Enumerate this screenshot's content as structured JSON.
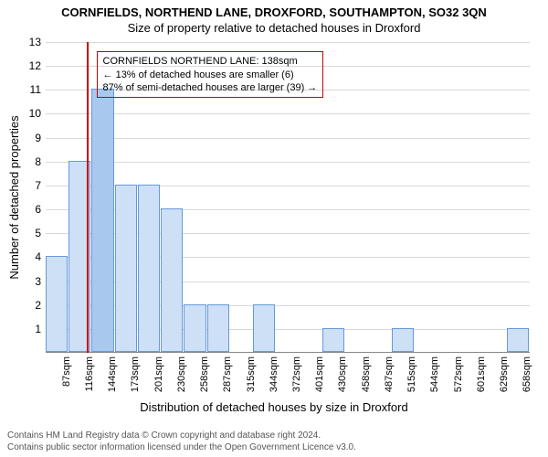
{
  "title_main": "CORNFIELDS, NORTHEND LANE, DROXFORD, SOUTHAMPTON, SO32 3QN",
  "title_sub": "Size of property relative to detached houses in Droxford",
  "ylabel": "Number of detached properties",
  "xlabel": "Distribution of detached houses by size in Droxford",
  "chart": {
    "type": "histogram",
    "ymax": 13,
    "yticks": [
      1,
      2,
      3,
      4,
      5,
      6,
      7,
      8,
      9,
      10,
      11,
      12,
      13
    ],
    "xtick_labels": [
      "87sqm",
      "116sqm",
      "144sqm",
      "173sqm",
      "201sqm",
      "230sqm",
      "258sqm",
      "287sqm",
      "315sqm",
      "344sqm",
      "372sqm",
      "401sqm",
      "430sqm",
      "458sqm",
      "487sqm",
      "515sqm",
      "544sqm",
      "572sqm",
      "601sqm",
      "629sqm",
      "658sqm"
    ],
    "xtick_positions": [
      0,
      1,
      2,
      3,
      4,
      5,
      6,
      7,
      8,
      9,
      10,
      11,
      12,
      13,
      14,
      15,
      16,
      17,
      18,
      19,
      20
    ],
    "bars": [
      {
        "slot": 0,
        "value": 4
      },
      {
        "slot": 1,
        "value": 8
      },
      {
        "slot": 2,
        "value": 11
      },
      {
        "slot": 3,
        "value": 7
      },
      {
        "slot": 4,
        "value": 7
      },
      {
        "slot": 5,
        "value": 6
      },
      {
        "slot": 6,
        "value": 2
      },
      {
        "slot": 7,
        "value": 2
      },
      {
        "slot": 9,
        "value": 2
      },
      {
        "slot": 12,
        "value": 1
      },
      {
        "slot": 15,
        "value": 1
      },
      {
        "slot": 20,
        "value": 1
      }
    ],
    "bar_fill": "#cde0f5",
    "bar_fill_highlight": "#a9c8ed",
    "bar_border": "#6699dd",
    "grid_color": "#d8d8d8",
    "vline_position_slot": 1.8,
    "vline_color": "#cc0000",
    "annotation": {
      "lines": [
        "CORNFIELDS NORTHEND LANE: 138sqm",
        "← 13% of detached houses are smaller (6)",
        "87% of semi-detached houses are larger (39) →"
      ],
      "border_color": "#cc0000",
      "left_slot": 2.2,
      "top_value": 12.6
    }
  },
  "footer": {
    "line1": "Contains HM Land Registry data © Crown copyright and database right 2024.",
    "line2": "Contains public sector information licensed under the Open Government Licence v3.0."
  }
}
